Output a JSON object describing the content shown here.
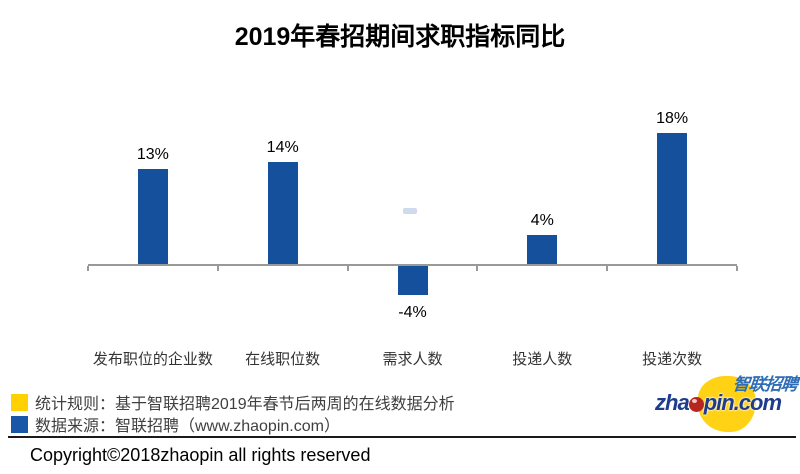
{
  "chart_data": {
    "type": "bar",
    "title": "2019年春招期间求职指标同比",
    "categories": [
      "发布职位的企业数",
      "在线职位数",
      "需求人数",
      "投递人数",
      "投递次数"
    ],
    "values": [
      13,
      14,
      -4,
      4,
      18
    ],
    "value_labels": [
      "13%",
      "14%",
      "-4%",
      "4%",
      "18%"
    ],
    "unit": "%",
    "bar_color": "#15509D",
    "axis_color": "#999999",
    "ylim": [
      -6,
      20
    ],
    "grid": false,
    "legend_position": "none",
    "xlabel": "",
    "ylabel": ""
  },
  "legend": {
    "items": [
      {
        "color": "#FFD100",
        "text": "统计规则：基于智联招聘2019年春节后两周的在线数据分析"
      },
      {
        "color": "#1A56A8",
        "text": "数据来源：智联招聘（www.zhaopin.com）"
      }
    ]
  },
  "footer": {
    "copyright": "Copyright©2018zhaopin all rights reserved"
  },
  "logo": {
    "brand_cn": "智联招聘",
    "brand_en_prefix": "zha",
    "brand_en_suffix": "pin.com",
    "blob_color": "#FFD215",
    "text_color": "#1E3C8E",
    "cn_color": "#2F6DB5",
    "ball_color": "#B5271E"
  }
}
